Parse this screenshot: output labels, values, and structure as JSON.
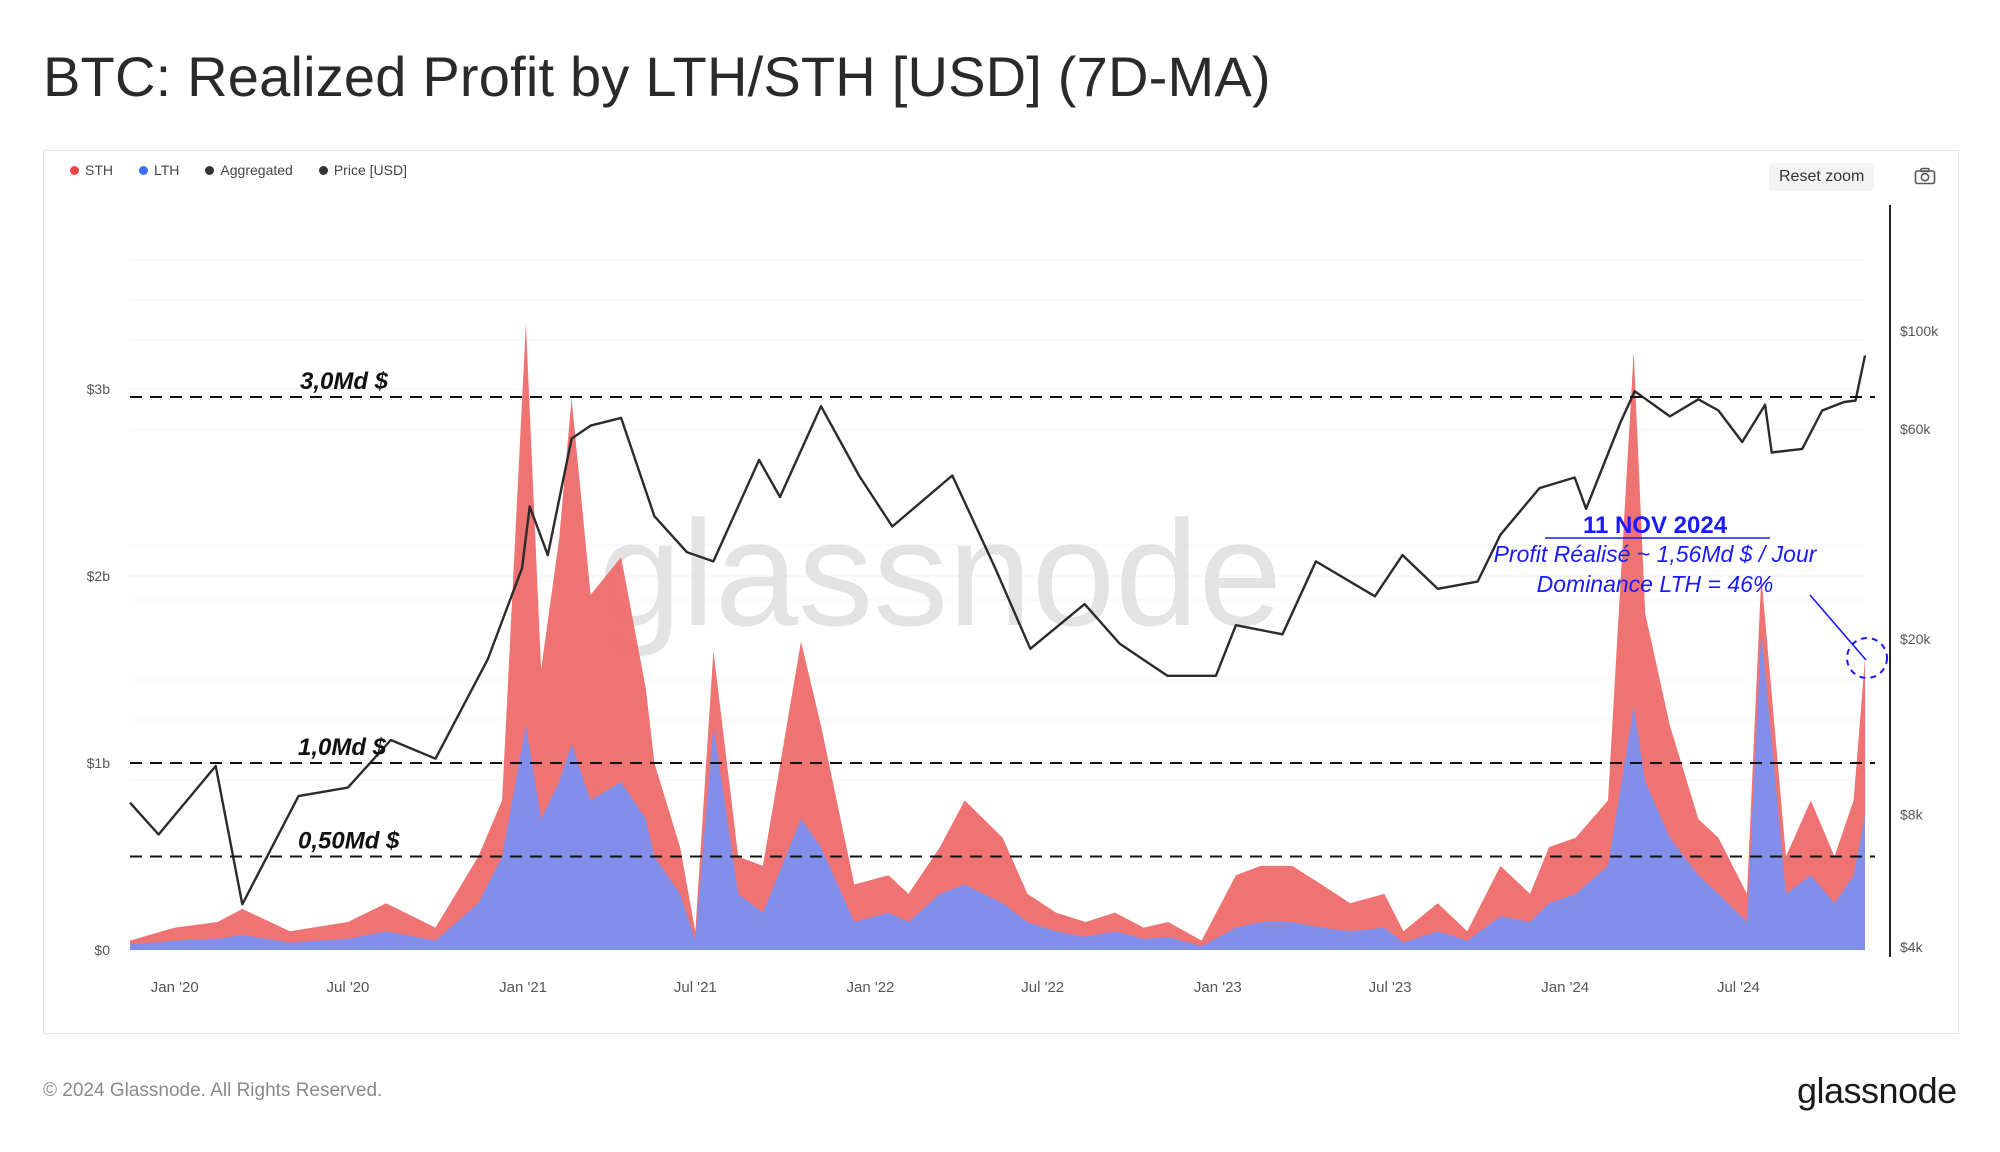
{
  "title": "BTC: Realized Profit by LTH/STH [USD] (7D-MA)",
  "legend": [
    {
      "label": "STH",
      "color": "#ef4444"
    },
    {
      "label": "LTH",
      "color": "#3b6ff2"
    },
    {
      "label": "Aggregated",
      "color": "#333333"
    },
    {
      "label": "Price [USD]",
      "color": "#333333"
    }
  ],
  "toolbar": {
    "reset_zoom": "Reset zoom",
    "camera_icon": "camera-icon"
  },
  "footer": {
    "copyright": "© 2024 Glassnode. All Rights Reserved.",
    "brand": "glassnode"
  },
  "watermark": "glassnode",
  "chart_data": {
    "type": "area",
    "x_ticks": [
      "Jan '20",
      "Jul '20",
      "Jan '21",
      "Jul '21",
      "Jan '22",
      "Jul '22",
      "Jan '23",
      "Jul '23",
      "Jan '24",
      "Jul '24"
    ],
    "y_left_ticks": [
      "$0",
      "$1b",
      "$2b",
      "$3b"
    ],
    "y_left_range": [
      0,
      4
    ],
    "y_right_ticks": [
      "$4k",
      "$8k",
      "$20k",
      "$60k",
      "$100k"
    ],
    "y_right_scale": "log",
    "x_range": [
      "2019-11-15",
      "2024-11-11"
    ],
    "series": [
      {
        "name": "STH",
        "color": "#ef6b6b",
        "x": [
          "2019-11-15",
          "2020-01-01",
          "2020-02-15",
          "2020-03-12",
          "2020-05-01",
          "2020-07-01",
          "2020-08-10",
          "2020-10-01",
          "2020-11-15",
          "2020-12-10",
          "2021-01-04",
          "2021-01-20",
          "2021-02-08",
          "2021-02-21",
          "2021-03-13",
          "2021-04-14",
          "2021-05-10",
          "2021-05-19",
          "2021-06-15",
          "2021-07-01",
          "2021-07-20",
          "2021-08-15",
          "2021-09-10",
          "2021-10-20",
          "2021-11-10",
          "2021-12-15",
          "2022-01-20",
          "2022-02-10",
          "2022-03-15",
          "2022-04-10",
          "2022-05-20",
          "2022-06-15",
          "2022-07-15",
          "2022-08-15",
          "2022-09-15",
          "2022-10-15",
          "2022-11-10",
          "2022-12-15",
          "2023-01-20",
          "2023-02-15",
          "2023-03-20",
          "2023-04-20",
          "2023-05-20",
          "2023-06-25",
          "2023-07-15",
          "2023-08-20",
          "2023-09-20",
          "2023-10-25",
          "2023-11-25",
          "2023-12-15",
          "2024-01-12",
          "2024-02-15",
          "2024-03-13",
          "2024-03-25",
          "2024-04-20",
          "2024-05-20",
          "2024-06-10",
          "2024-07-10",
          "2024-07-25",
          "2024-08-20",
          "2024-09-15",
          "2024-10-10",
          "2024-10-30",
          "2024-11-11"
        ],
        "values": [
          0.05,
          0.12,
          0.15,
          0.22,
          0.1,
          0.15,
          0.25,
          0.12,
          0.5,
          0.8,
          3.35,
          1.5,
          2.2,
          2.95,
          1.9,
          2.1,
          1.4,
          1.0,
          0.55,
          0.1,
          1.6,
          0.5,
          0.45,
          1.65,
          1.2,
          0.35,
          0.4,
          0.3,
          0.55,
          0.8,
          0.6,
          0.3,
          0.2,
          0.15,
          0.2,
          0.12,
          0.15,
          0.05,
          0.4,
          0.45,
          0.45,
          0.35,
          0.25,
          0.3,
          0.1,
          0.25,
          0.1,
          0.45,
          0.3,
          0.55,
          0.6,
          0.8,
          3.2,
          1.8,
          1.2,
          0.7,
          0.6,
          0.3,
          2.0,
          0.5,
          0.8,
          0.5,
          0.8,
          1.56
        ]
      },
      {
        "name": "LTH",
        "color": "#7a8ff0",
        "x": [
          "2019-11-15",
          "2020-01-01",
          "2020-02-15",
          "2020-03-12",
          "2020-05-01",
          "2020-07-01",
          "2020-08-10",
          "2020-10-01",
          "2020-11-15",
          "2020-12-10",
          "2021-01-04",
          "2021-01-20",
          "2021-02-08",
          "2021-02-21",
          "2021-03-13",
          "2021-04-14",
          "2021-05-10",
          "2021-05-19",
          "2021-06-15",
          "2021-07-01",
          "2021-07-20",
          "2021-08-15",
          "2021-09-10",
          "2021-10-20",
          "2021-11-10",
          "2021-12-15",
          "2022-01-20",
          "2022-02-10",
          "2022-03-15",
          "2022-04-10",
          "2022-05-20",
          "2022-06-15",
          "2022-07-15",
          "2022-08-15",
          "2022-09-15",
          "2022-10-15",
          "2022-11-10",
          "2022-12-15",
          "2023-01-20",
          "2023-02-15",
          "2023-03-20",
          "2023-04-20",
          "2023-05-20",
          "2023-06-25",
          "2023-07-15",
          "2023-08-20",
          "2023-09-20",
          "2023-10-25",
          "2023-11-25",
          "2023-12-15",
          "2024-01-12",
          "2024-02-15",
          "2024-03-13",
          "2024-03-25",
          "2024-04-20",
          "2024-05-20",
          "2024-06-10",
          "2024-07-10",
          "2024-07-25",
          "2024-08-20",
          "2024-09-15",
          "2024-10-10",
          "2024-10-30",
          "2024-11-11"
        ],
        "values": [
          0.03,
          0.05,
          0.06,
          0.08,
          0.04,
          0.06,
          0.1,
          0.05,
          0.25,
          0.5,
          1.2,
          0.7,
          0.9,
          1.1,
          0.8,
          0.9,
          0.7,
          0.5,
          0.3,
          0.05,
          1.2,
          0.3,
          0.2,
          0.7,
          0.55,
          0.15,
          0.2,
          0.15,
          0.3,
          0.35,
          0.25,
          0.15,
          0.1,
          0.07,
          0.1,
          0.06,
          0.07,
          0.02,
          0.12,
          0.15,
          0.15,
          0.12,
          0.1,
          0.12,
          0.04,
          0.1,
          0.05,
          0.18,
          0.15,
          0.25,
          0.3,
          0.45,
          1.3,
          0.9,
          0.6,
          0.4,
          0.3,
          0.15,
          1.7,
          0.3,
          0.4,
          0.25,
          0.4,
          0.72
        ]
      },
      {
        "name": "Price [USD]",
        "color": "#333333",
        "axis": "right",
        "x": [
          "2019-11-15",
          "2019-12-15",
          "2020-02-13",
          "2020-03-12",
          "2020-05-10",
          "2020-07-01",
          "2020-08-15",
          "2020-10-01",
          "2020-11-25",
          "2020-12-31",
          "2021-01-08",
          "2021-01-27",
          "2021-02-21",
          "2021-03-13",
          "2021-04-14",
          "2021-05-19",
          "2021-06-22",
          "2021-07-20",
          "2021-09-06",
          "2021-09-28",
          "2021-11-10",
          "2021-12-20",
          "2022-01-24",
          "2022-03-28",
          "2022-05-12",
          "2022-06-18",
          "2022-08-14",
          "2022-09-20",
          "2022-11-09",
          "2022-12-30",
          "2023-01-20",
          "2023-03-10",
          "2023-04-14",
          "2023-06-15",
          "2023-07-14",
          "2023-08-20",
          "2023-10-01",
          "2023-10-25",
          "2023-12-05",
          "2024-01-11",
          "2024-01-23",
          "2024-02-28",
          "2024-03-14",
          "2024-04-20",
          "2024-05-20",
          "2024-06-10",
          "2024-07-05",
          "2024-07-29",
          "2024-08-05",
          "2024-09-06",
          "2024-09-27",
          "2024-10-20",
          "2024-11-01",
          "2024-11-11"
        ],
        "values": [
          8500,
          7200,
          10300,
          5000,
          8800,
          9200,
          11800,
          10700,
          18000,
          29000,
          40000,
          31000,
          57000,
          61000,
          63500,
          38000,
          31500,
          30000,
          51000,
          42000,
          67500,
          47000,
          36000,
          47000,
          29000,
          19000,
          24000,
          19500,
          16500,
          16500,
          21500,
          20500,
          30000,
          25000,
          31000,
          26000,
          27000,
          34500,
          44000,
          46500,
          39500,
          62000,
          73000,
          64000,
          70000,
          66000,
          56000,
          68000,
          53000,
          54000,
          66000,
          69000,
          69500,
          88000
        ]
      }
    ],
    "annotations": [
      {
        "text": "3,0Md $",
        "y": 3.0
      },
      {
        "text": "1,0Md $",
        "y": 1.0
      },
      {
        "text": "0,50Md $",
        "y": 0.5
      },
      {
        "title": "11 NOV 2024",
        "line1": "Profit Réalisé ~ 1,56Md $ / Jour",
        "line2": "Dominance LTH = 46%"
      }
    ]
  }
}
